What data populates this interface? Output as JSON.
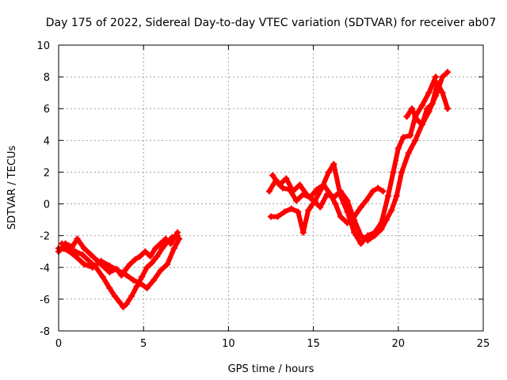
{
  "chart_data": {
    "type": "scatter",
    "title": "Day 175 of 2022, Sidereal Day-to-day VTEC variation (SDTVAR) for receiver ab07",
    "xlabel": "GPS time / hours",
    "ylabel": "SDTVAR / TECUs",
    "xlim": [
      0,
      25
    ],
    "ylim": [
      -8,
      10
    ],
    "x_ticks": [
      0,
      5,
      10,
      15,
      20,
      25
    ],
    "y_ticks": [
      -8,
      -6,
      -4,
      -2,
      0,
      2,
      4,
      6,
      8,
      10
    ],
    "grid": true,
    "marker": "plus",
    "series_color": "#ff0000",
    "series": [
      {
        "x": [
          0.0,
          0.4,
          0.8,
          1.1,
          1.5,
          1.9,
          2.3,
          2.7,
          3.0,
          3.4,
          3.7,
          3.9,
          4.2,
          4.5,
          4.8,
          5.1,
          5.4,
          5.7,
          6.0,
          6.3,
          6.6,
          6.9,
          7.0
        ],
        "y": [
          -3.0,
          -2.5,
          -2.7,
          -2.2,
          -2.8,
          -3.2,
          -3.6,
          -4.0,
          -4.3,
          -4.1,
          -4.5,
          -4.2,
          -3.8,
          -3.5,
          -3.3,
          -3.0,
          -3.3,
          -2.8,
          -2.5,
          -2.2,
          -2.5,
          -2.0,
          -1.8
        ]
      },
      {
        "x": [
          0.2,
          0.6,
          1.0,
          1.4,
          1.8,
          2.2,
          2.6,
          3.0,
          3.3,
          3.6,
          3.8,
          4.0,
          4.3,
          4.6,
          4.9,
          5.2,
          5.5,
          5.8,
          6.1,
          6.4,
          6.7,
          7.0
        ],
        "y": [
          -2.5,
          -2.8,
          -3.0,
          -3.2,
          -3.6,
          -4.0,
          -4.6,
          -5.3,
          -5.8,
          -6.2,
          -6.5,
          -6.3,
          -5.8,
          -5.2,
          -4.6,
          -4.0,
          -3.7,
          -3.3,
          -2.8,
          -2.4,
          -2.1,
          -2.0
        ]
      },
      {
        "x": [
          0.0,
          0.5,
          1.0,
          1.5,
          2.0,
          2.5,
          3.0,
          3.5,
          4.0,
          4.4,
          4.8,
          5.2,
          5.6,
          6.0,
          6.4,
          6.8,
          7.1
        ],
        "y": [
          -2.8,
          -2.9,
          -3.3,
          -3.8,
          -4.0,
          -3.6,
          -3.9,
          -4.2,
          -4.5,
          -4.8,
          -5.0,
          -5.3,
          -4.8,
          -4.2,
          -3.8,
          -2.8,
          -2.2
        ]
      },
      {
        "x": [
          12.4,
          12.8,
          13.2,
          13.6,
          14.0,
          14.4,
          14.8,
          15.2,
          15.6,
          16.0,
          16.3,
          16.6,
          17.0,
          17.4,
          17.8,
          18.1,
          18.5,
          18.8,
          19.1
        ],
        "y": [
          0.8,
          1.5,
          1.0,
          0.9,
          0.2,
          0.6,
          0.4,
          0.9,
          1.2,
          0.6,
          0.0,
          -0.8,
          -1.2,
          -0.8,
          -0.2,
          0.2,
          0.8,
          1.0,
          0.8
        ]
      },
      {
        "x": [
          12.5,
          12.9,
          13.3,
          13.7,
          14.1,
          14.4,
          14.7,
          15.1,
          15.5,
          15.9,
          16.2,
          16.6,
          17.0,
          17.4,
          17.8,
          18.2,
          18.6,
          19.0,
          19.4,
          19.7,
          20.0,
          20.3,
          20.7,
          21.0,
          21.4,
          21.8,
          22.2
        ],
        "y": [
          -0.8,
          -0.8,
          -0.5,
          -0.3,
          -0.5,
          -1.8,
          -0.4,
          0.2,
          1.0,
          2.0,
          2.5,
          0.5,
          -0.5,
          -1.8,
          -2.5,
          -2.0,
          -1.8,
          -1.2,
          0.5,
          2.0,
          3.5,
          4.2,
          4.3,
          5.5,
          6.2,
          7.0,
          8.0
        ]
      },
      {
        "x": [
          12.6,
          13.0,
          13.4,
          13.8,
          14.2,
          14.6,
          15.0,
          15.4,
          15.8,
          16.2,
          16.6,
          17.0,
          17.4,
          17.8,
          18.2,
          18.6,
          19.0,
          19.3,
          19.6,
          19.9,
          20.2,
          20.6,
          21.0,
          21.4,
          21.8,
          22.2,
          22.6,
          22.9
        ],
        "y": [
          1.8,
          1.2,
          1.6,
          0.8,
          1.2,
          0.6,
          0.2,
          -0.2,
          0.6,
          0.4,
          0.8,
          0.2,
          -1.0,
          -2.0,
          -2.3,
          -2.0,
          -1.6,
          -1.0,
          -0.4,
          0.5,
          2.0,
          3.2,
          4.0,
          5.0,
          5.8,
          6.8,
          8.0,
          8.3
        ]
      },
      {
        "x": [
          20.5,
          20.8,
          21.1,
          21.4,
          21.7,
          22.0,
          22.3,
          22.6,
          22.9
        ],
        "y": [
          5.5,
          6.0,
          5.3,
          5.0,
          6.0,
          6.3,
          7.6,
          7.0,
          6.0
        ]
      }
    ]
  }
}
